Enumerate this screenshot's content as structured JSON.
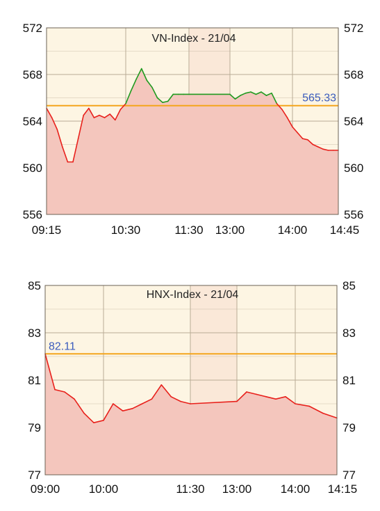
{
  "colors": {
    "plot_bg": "#fdf5e3",
    "lunch_bg": "#fae8d8",
    "grid": "#b9ab96",
    "area_fill": "#f4c6bd",
    "line_down": "#e8201b",
    "line_up": "#1f9a1f",
    "ref_line": "#f4a51d",
    "ref_text": "#3a5bbd"
  },
  "chart_data": [
    {
      "type": "area",
      "title": "VN-Index - 21/04",
      "ylim": [
        556,
        572
      ],
      "yticks": [
        "572",
        "568",
        "564",
        "560",
        "556"
      ],
      "xticks": [
        "09:15",
        "10:30",
        "11:30",
        "13:00",
        "14:00",
        "14:45"
      ],
      "grid": true,
      "lunch_break": [
        "11:30",
        "13:00"
      ],
      "reference_value": 565.33,
      "reference_label": "565.33",
      "x": [
        "09:15",
        "09:20",
        "09:25",
        "09:30",
        "09:35",
        "09:40",
        "09:45",
        "09:50",
        "09:55",
        "10:00",
        "10:05",
        "10:10",
        "10:15",
        "10:20",
        "10:25",
        "10:30",
        "10:35",
        "10:40",
        "10:45",
        "10:50",
        "10:55",
        "11:00",
        "11:05",
        "11:10",
        "11:15",
        "11:20",
        "11:25",
        "11:30",
        "13:00",
        "13:05",
        "13:10",
        "13:15",
        "13:20",
        "13:25",
        "13:30",
        "13:35",
        "13:40",
        "13:45",
        "13:50",
        "13:55",
        "14:00",
        "14:05",
        "14:10",
        "14:15",
        "14:20",
        "14:25",
        "14:30",
        "14:35",
        "14:40",
        "14:45"
      ],
      "values": [
        565.1,
        564.3,
        563.3,
        561.8,
        560.5,
        560.5,
        562.5,
        564.5,
        565.1,
        564.3,
        564.5,
        564.3,
        564.6,
        564.1,
        565.0,
        565.5,
        566.6,
        567.6,
        568.5,
        567.5,
        566.9,
        566.0,
        565.6,
        565.7,
        566.3,
        566.3,
        566.3,
        566.3,
        566.3,
        565.9,
        566.2,
        566.4,
        566.5,
        566.3,
        566.5,
        566.2,
        566.4,
        565.5,
        565.0,
        564.3,
        563.5,
        563.0,
        562.5,
        562.4,
        562.0,
        561.8,
        561.6,
        561.5,
        561.5,
        561.5
      ]
    },
    {
      "type": "area",
      "title": "HNX-Index - 21/04",
      "ylim": [
        77,
        85
      ],
      "yticks": [
        "85",
        "83",
        "81",
        "79",
        "77"
      ],
      "xticks": [
        "09:00",
        "10:00",
        "11:30",
        "13:00",
        "14:00",
        "14:15"
      ],
      "grid": true,
      "lunch_break": [
        "11:30",
        "13:00"
      ],
      "reference_value": 82.11,
      "reference_label": "82.11",
      "x": [
        "09:00",
        "09:10",
        "09:20",
        "09:30",
        "09:40",
        "09:50",
        "10:00",
        "10:10",
        "10:20",
        "10:30",
        "10:40",
        "10:50",
        "11:00",
        "11:10",
        "11:20",
        "11:30",
        "13:00",
        "13:10",
        "13:20",
        "13:30",
        "13:40",
        "13:50",
        "14:00",
        "14:05",
        "14:10",
        "14:15"
      ],
      "values": [
        82.11,
        80.6,
        80.5,
        80.2,
        79.6,
        79.2,
        79.3,
        80.0,
        79.7,
        79.8,
        80.0,
        80.2,
        80.8,
        80.3,
        80.1,
        80.0,
        80.1,
        80.5,
        80.4,
        80.3,
        80.2,
        80.3,
        80.0,
        79.9,
        79.6,
        79.4
      ]
    }
  ]
}
